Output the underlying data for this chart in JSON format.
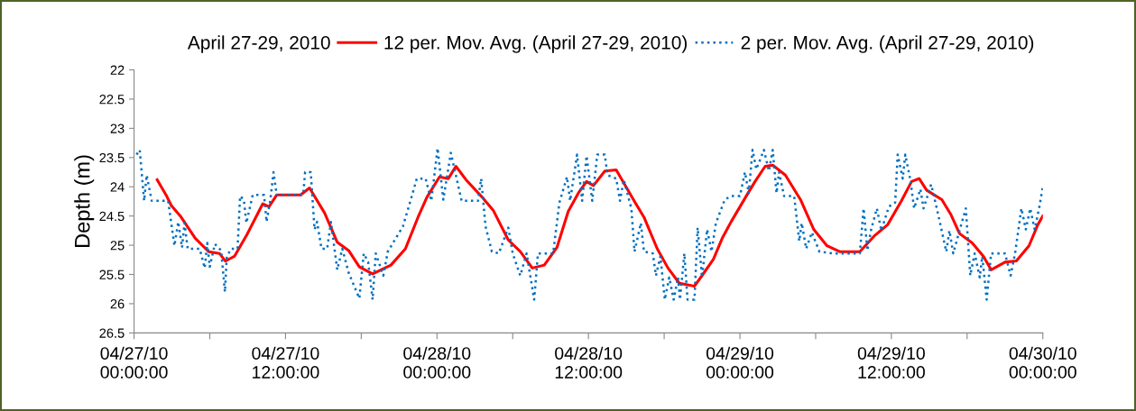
{
  "chart_data": {
    "type": "line",
    "ylabel": "Depth (m)",
    "legend_title": "April 27-29, 2010",
    "legend": "top",
    "grid": false,
    "xlim": [
      "2010-04-27T00:00",
      "2010-04-30T00:00"
    ],
    "ylim": [
      26.5,
      22
    ],
    "yticks": [
      22,
      22.5,
      23,
      23.5,
      24,
      24.5,
      25,
      25.5,
      26,
      26.5
    ],
    "xticks": [
      {
        "value": "2010-04-27T00:00",
        "label": "04/27/10\n00:00:00"
      },
      {
        "value": "2010-04-27T06:00",
        "label": null
      },
      {
        "value": "2010-04-27T12:00",
        "label": "04/27/10\n12:00:00"
      },
      {
        "value": "2010-04-27T18:00",
        "label": null
      },
      {
        "value": "2010-04-28T00:00",
        "label": "04/28/10\n00:00:00"
      },
      {
        "value": "2010-04-28T06:00",
        "label": null
      },
      {
        "value": "2010-04-28T12:00",
        "label": "04/28/10\n12:00:00"
      },
      {
        "value": "2010-04-28T18:00",
        "label": null
      },
      {
        "value": "2010-04-29T00:00",
        "label": "04/29/10\n00:00:00"
      },
      {
        "value": "2010-04-29T06:00",
        "label": null
      },
      {
        "value": "2010-04-29T12:00",
        "label": "04/29/10\n12:00:00"
      },
      {
        "value": "2010-04-29T18:00",
        "label": null
      },
      {
        "value": "2010-04-30T00:00",
        "label": "04/30/10\n00:00:00"
      }
    ],
    "series": [
      {
        "name": "12 per. Mov. Avg. (April 27-29, 2010)",
        "color": "#ff0000",
        "line_style": "solid",
        "x": [
          "2010-04-27T01:50",
          "2010-04-27T02:35",
          "2010-04-27T02:57",
          "2010-04-27T03:40",
          "2010-04-27T04:51",
          "2010-04-27T05:55",
          "2010-04-27T06:46",
          "2010-04-27T07:14",
          "2010-04-27T07:57",
          "2010-04-27T08:55",
          "2010-04-27T10:12",
          "2010-04-27T10:42",
          "2010-04-27T11:18",
          "2010-04-27T13:12",
          "2010-04-27T13:54",
          "2010-04-27T15:06",
          "2010-04-27T16:06",
          "2010-04-27T17:00",
          "2010-04-27T17:51",
          "2010-04-27T18:54",
          "2010-04-27T20:21",
          "2010-04-27T21:30",
          "2010-04-27T22:30",
          "2010-04-27T23:12",
          "2010-04-28T00:12",
          "2010-04-28T00:54",
          "2010-04-28T01:30",
          "2010-04-28T02:18",
          "2010-04-28T03:30",
          "2010-04-28T04:27",
          "2010-04-28T05:39",
          "2010-04-28T06:36",
          "2010-04-28T07:33",
          "2010-04-28T08:30",
          "2010-04-28T09:30",
          "2010-04-28T10:24",
          "2010-04-28T11:15",
          "2010-04-28T11:51",
          "2010-04-28T12:24",
          "2010-04-28T13:18",
          "2010-04-28T14:12",
          "2010-04-28T15:42",
          "2010-04-28T16:24",
          "2010-04-28T17:27",
          "2010-04-28T18:18",
          "2010-04-28T19:12",
          "2010-04-28T20:24",
          "2010-04-28T20:54",
          "2010-04-28T21:54",
          "2010-04-28T22:36",
          "2010-04-28T23:18",
          "2010-04-29T00:30",
          "2010-04-29T01:12",
          "2010-04-29T02:00",
          "2010-04-29T02:36",
          "2010-04-29T03:36",
          "2010-04-29T04:48",
          "2010-04-29T05:51",
          "2010-04-29T06:54",
          "2010-04-29T07:54",
          "2010-04-29T09:30",
          "2010-04-29T10:42",
          "2010-04-29T11:42",
          "2010-04-29T12:48",
          "2010-04-29T13:36",
          "2010-04-29T14:12",
          "2010-04-29T14:48",
          "2010-04-29T16:00",
          "2010-04-29T16:42",
          "2010-04-29T17:24",
          "2010-04-29T18:24",
          "2010-04-29T19:18",
          "2010-04-29T19:54",
          "2010-04-29T21:00",
          "2010-04-29T21:54",
          "2010-04-29T22:54",
          "2010-04-29T23:36",
          "2010-04-30T00:00"
        ],
        "values": [
          23.88,
          24.16,
          24.32,
          24.5,
          24.88,
          25.11,
          25.14,
          25.27,
          25.19,
          24.83,
          24.29,
          24.34,
          24.14,
          24.14,
          24.02,
          24.45,
          24.95,
          25.09,
          25.37,
          25.49,
          25.34,
          25.06,
          24.52,
          24.18,
          23.83,
          23.86,
          23.65,
          23.88,
          24.16,
          24.4,
          24.91,
          25.11,
          25.39,
          25.34,
          25.04,
          24.42,
          24.09,
          23.91,
          23.98,
          23.73,
          23.71,
          24.27,
          24.52,
          25.06,
          25.39,
          25.65,
          25.7,
          25.55,
          25.24,
          24.88,
          24.6,
          24.16,
          23.91,
          23.65,
          23.63,
          23.8,
          24.22,
          24.73,
          25.01,
          25.11,
          25.11,
          24.83,
          24.65,
          24.24,
          23.91,
          23.86,
          24.06,
          24.22,
          24.47,
          24.8,
          24.96,
          25.19,
          25.42,
          25.29,
          25.27,
          25.01,
          24.65,
          24.5
        ]
      },
      {
        "name": "2 per. Mov. Avg. (April 27-29, 2010)",
        "color": "#0070c0",
        "line_style": "dotted",
        "x": [
          "2010-04-27T00:12",
          "2010-04-27T00:27",
          "2010-04-27T00:48",
          "2010-04-27T01:00",
          "2010-04-27T01:24",
          "2010-04-27T02:42",
          "2010-04-27T03:12",
          "2010-04-27T03:30",
          "2010-04-27T03:48",
          "2010-04-27T04:00",
          "2010-04-27T04:15",
          "2010-04-27T05:12",
          "2010-04-27T05:36",
          "2010-04-27T05:48",
          "2010-04-27T06:00",
          "2010-04-27T06:24",
          "2010-04-27T06:54",
          "2010-04-27T07:12",
          "2010-04-27T07:21",
          "2010-04-27T07:42",
          "2010-04-27T08:12",
          "2010-04-27T08:24",
          "2010-04-27T08:42",
          "2010-04-27T08:54",
          "2010-04-27T09:24",
          "2010-04-27T10:18",
          "2010-04-27T10:30",
          "2010-04-27T10:48",
          "2010-04-27T11:03",
          "2010-04-27T11:18",
          "2010-04-27T13:24",
          "2010-04-27T13:33",
          "2010-04-27T14:00",
          "2010-04-27T14:18",
          "2010-04-27T14:30",
          "2010-04-27T14:51",
          "2010-04-27T15:18",
          "2010-04-27T15:36",
          "2010-04-27T16:06",
          "2010-04-27T16:30",
          "2010-04-27T17:00",
          "2010-04-27T17:51",
          "2010-04-27T18:12",
          "2010-04-27T18:33",
          "2010-04-27T18:54",
          "2010-04-27T19:09",
          "2010-04-27T19:45",
          "2010-04-27T20:06",
          "2010-04-27T21:18",
          "2010-04-27T21:54",
          "2010-04-27T22:24",
          "2010-04-27T23:06",
          "2010-04-27T23:33",
          "2010-04-28T00:03",
          "2010-04-28T00:30",
          "2010-04-28T01:06",
          "2010-04-28T01:57",
          "2010-04-28T03:15",
          "2010-04-28T03:30",
          "2010-04-28T03:51",
          "2010-04-28T04:21",
          "2010-04-28T04:54",
          "2010-04-28T05:39",
          "2010-04-28T06:00",
          "2010-04-28T06:36",
          "2010-04-28T07:06",
          "2010-04-28T07:42",
          "2010-04-28T08:00",
          "2010-04-28T09:12",
          "2010-04-28T09:42",
          "2010-04-28T10:18",
          "2010-04-28T10:33",
          "2010-04-28T11:06",
          "2010-04-28T11:30",
          "2010-04-28T11:51",
          "2010-04-28T12:18",
          "2010-04-28T12:42",
          "2010-04-28T13:18",
          "2010-04-28T13:30",
          "2010-04-28T14:12",
          "2010-04-28T14:30",
          "2010-04-28T14:48",
          "2010-04-28T15:24",
          "2010-04-28T15:39",
          "2010-04-28T16:09",
          "2010-04-28T16:24",
          "2010-04-28T17:06",
          "2010-04-28T17:21",
          "2010-04-28T17:42",
          "2010-04-28T18:03",
          "2010-04-28T18:24",
          "2010-04-28T18:45",
          "2010-04-28T19:06",
          "2010-04-28T19:15",
          "2010-04-28T19:36",
          "2010-04-28T19:51",
          "2010-04-28T20:24",
          "2010-04-28T20:39",
          "2010-04-28T21:00",
          "2010-04-28T21:24",
          "2010-04-28T21:45",
          "2010-04-28T22:06",
          "2010-04-28T22:48",
          "2010-04-28T23:18",
          "2010-04-29T00:00",
          "2010-04-29T00:24",
          "2010-04-29T00:42",
          "2010-04-29T01:00",
          "2010-04-29T01:18",
          "2010-04-29T01:54",
          "2010-04-29T02:18",
          "2010-04-29T02:36",
          "2010-04-29T02:54",
          "2010-04-29T03:06",
          "2010-04-29T03:30",
          "2010-04-29T04:18",
          "2010-04-29T04:42",
          "2010-04-29T04:54",
          "2010-04-29T05:15",
          "2010-04-29T05:42",
          "2010-04-29T06:18",
          "2010-04-29T07:24",
          "2010-04-29T09:30",
          "2010-04-29T09:48",
          "2010-04-29T10:06",
          "2010-04-29T10:24",
          "2010-04-29T10:51",
          "2010-04-29T11:12",
          "2010-04-29T11:48",
          "2010-04-29T12:18",
          "2010-04-29T12:30",
          "2010-04-29T12:54",
          "2010-04-29T13:06",
          "2010-04-29T13:30",
          "2010-04-29T13:48",
          "2010-04-29T14:18",
          "2010-04-29T14:33",
          "2010-04-29T15:09",
          "2010-04-29T15:36",
          "2010-04-29T16:21",
          "2010-04-29T16:36",
          "2010-04-29T16:54",
          "2010-04-29T17:24",
          "2010-04-29T17:54",
          "2010-04-29T18:15",
          "2010-04-29T18:36",
          "2010-04-29T19:00",
          "2010-04-29T19:12",
          "2010-04-29T19:33",
          "2010-04-29T19:54",
          "2010-04-29T21:00",
          "2010-04-29T21:27",
          "2010-04-29T21:48",
          "2010-04-29T22:18",
          "2010-04-29T22:39",
          "2010-04-29T23:00",
          "2010-04-29T23:21",
          "2010-04-29T23:42",
          "2010-04-30T00:00"
        ],
        "values": [
          23.45,
          23.37,
          24.24,
          23.8,
          24.24,
          24.24,
          25.01,
          24.6,
          25.04,
          24.62,
          25.06,
          25.06,
          25.39,
          24.96,
          25.37,
          24.98,
          25.09,
          25.8,
          25.19,
          25.06,
          25.06,
          24.16,
          24.22,
          24.62,
          24.14,
          24.14,
          24.6,
          24.22,
          23.75,
          24.14,
          24.14,
          23.75,
          23.75,
          24.73,
          24.6,
          25.06,
          25.06,
          24.6,
          25.42,
          25.06,
          25.47,
          25.91,
          25.14,
          25.29,
          25.93,
          25.14,
          25.52,
          25.11,
          24.68,
          24.24,
          23.86,
          23.86,
          24.24,
          23.34,
          24.22,
          23.42,
          24.24,
          24.24,
          23.86,
          24.68,
          25.11,
          25.14,
          24.7,
          25.14,
          25.52,
          25.14,
          25.93,
          25.14,
          25.14,
          24.27,
          23.83,
          24.24,
          23.45,
          24.24,
          23.47,
          24.24,
          23.45,
          23.45,
          23.8,
          23.86,
          24.24,
          23.88,
          24.37,
          25.11,
          24.62,
          25.11,
          25.14,
          25.52,
          25.19,
          25.93,
          25.55,
          25.93,
          25.55,
          25.93,
          25.14,
          25.93,
          25.93,
          24.7,
          25.55,
          24.73,
          25.11,
          24.62,
          24.22,
          24.16,
          24.16,
          23.75,
          24.11,
          23.37,
          23.7,
          23.37,
          23.73,
          23.37,
          24.11,
          23.75,
          24.16,
          24.16,
          24.93,
          24.62,
          25.06,
          24.78,
          25.11,
          25.14,
          25.14,
          24.37,
          25.09,
          24.73,
          24.37,
          24.75,
          24.34,
          24.27,
          23.45,
          23.86,
          23.45,
          23.88,
          24.37,
          24.04,
          24.37,
          23.96,
          24.37,
          25.11,
          24.75,
          25.14,
          24.75,
          24.37,
          25.52,
          25.14,
          25.55,
          25.19,
          25.93,
          25.14,
          25.14,
          25.52,
          25.14,
          24.37,
          24.73,
          24.37,
          24.73,
          24.37,
          24.0
        ]
      }
    ]
  }
}
